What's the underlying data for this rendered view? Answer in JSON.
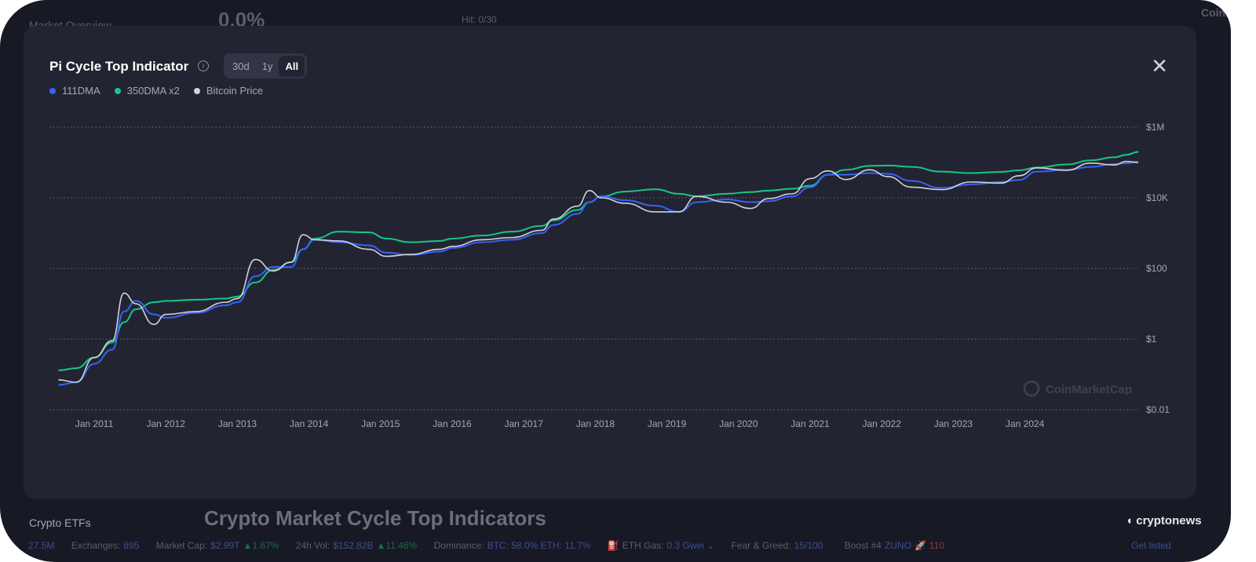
{
  "background": {
    "sidebar_top": "Market Overview",
    "sidebar_bottom": "Crypto ETFs",
    "stat_value": "0.0%",
    "hit": "Hit: 0/30",
    "page_heading": "Crypto Market Cycle Top Indicators",
    "watermark": "CoinMarketCap",
    "cryptonews_logo": "cryptonews"
  },
  "ticker": {
    "partial": "27.5M",
    "exchanges_label": "Exchanges:",
    "exchanges": "895",
    "mcap_label": "Market Cap:",
    "mcap": "$2.99T",
    "mcap_change": "▲1.67%",
    "vol_label": "24h Vol:",
    "vol": "$152.82B",
    "vol_change": "▲11.46%",
    "dom_label": "Dominance:",
    "dom": "BTC: 58.0% ETH: 11.7%",
    "gas_label": "ETH Gas:",
    "gas": "0.3 Gwei ⌄",
    "fg_label": "Fear & Greed:",
    "fg": "15/100",
    "boost": "Boost #4",
    "boost_coin": "ZUNO",
    "boost_count": "110",
    "get_listed": "Get listed"
  },
  "modal": {
    "title": "Pi Cycle Top Indicator",
    "ranges": [
      "30d",
      "1y",
      "All"
    ],
    "active_range": "All",
    "watermark": "CoinMarketCap"
  },
  "chart_data": {
    "type": "line",
    "yscale": "log",
    "ylim": [
      0.01,
      1000000
    ],
    "grid": true,
    "legend_position": "top-left",
    "y_ticks": [
      "$1M",
      "$10K",
      "$100",
      "$1",
      "$0.01"
    ],
    "y_tick_values": [
      1000000,
      10000,
      100,
      1,
      0.01
    ],
    "x_ticks": [
      "Jan 2011",
      "Jan 2012",
      "Jan 2013",
      "Jan 2014",
      "Jan 2015",
      "Jan 2016",
      "Jan 2017",
      "Jan 2018",
      "Jan 2019",
      "Jan 2020",
      "Jan 2021",
      "Jan 2022",
      "Jan 2023",
      "Jan 2024"
    ],
    "x": [
      "2010-07",
      "2010-10",
      "2011-01",
      "2011-04",
      "2011-06",
      "2011-08",
      "2011-11",
      "2012-01",
      "2012-06",
      "2012-11",
      "2013-01",
      "2013-04",
      "2013-07",
      "2013-10",
      "2013-12",
      "2014-02",
      "2014-06",
      "2014-11",
      "2015-02",
      "2015-06",
      "2015-11",
      "2016-01",
      "2016-06",
      "2016-11",
      "2017-04",
      "2017-06",
      "2017-10",
      "2017-12",
      "2018-02",
      "2018-06",
      "2018-11",
      "2019-03",
      "2019-06",
      "2019-11",
      "2020-03",
      "2020-06",
      "2020-10",
      "2021-01",
      "2021-04",
      "2021-07",
      "2021-11",
      "2022-02",
      "2022-06",
      "2022-11",
      "2023-04",
      "2023-09",
      "2023-12",
      "2024-03",
      "2024-08",
      "2024-12",
      "2025-04",
      "2025-06",
      "2025-08"
    ],
    "series": [
      {
        "name": "111DMA",
        "color": "#3861fb",
        "values": [
          0.05,
          0.06,
          0.2,
          0.5,
          6,
          12,
          5,
          4,
          5.5,
          9,
          11,
          60,
          110,
          110,
          350,
          650,
          550,
          450,
          280,
          240,
          300,
          380,
          550,
          650,
          1000,
          1700,
          3500,
          7500,
          11000,
          8500,
          6000,
          4000,
          7500,
          9000,
          7500,
          8000,
          11000,
          20000,
          45000,
          45000,
          50000,
          48000,
          30000,
          19000,
          24000,
          28000,
          32000,
          55000,
          62000,
          75000,
          90000,
          95000,
          105000
        ]
      },
      {
        "name": "350DMA x2",
        "color": "#16c784",
        "values": [
          0.13,
          0.15,
          0.3,
          0.8,
          3,
          7,
          11,
          12,
          13,
          14,
          16,
          40,
          90,
          150,
          350,
          700,
          1100,
          1050,
          700,
          550,
          600,
          700,
          850,
          1100,
          1600,
          2300,
          4500,
          7500,
          11000,
          15000,
          17500,
          13000,
          11000,
          13000,
          14500,
          16000,
          18000,
          22000,
          45000,
          62000,
          80000,
          82000,
          75000,
          55000,
          50000,
          54000,
          60000,
          72000,
          88000,
          115000,
          140000,
          165000,
          200000
        ]
      },
      {
        "name": "Bitcoin Price",
        "color": "#cfd2d9",
        "values": [
          0.07,
          0.06,
          0.3,
          0.9,
          20,
          10,
          2.6,
          5,
          6,
          11,
          14,
          180,
          85,
          150,
          900,
          650,
          600,
          350,
          220,
          250,
          350,
          420,
          650,
          750,
          1200,
          2500,
          5800,
          16000,
          10000,
          7000,
          4000,
          4000,
          11000,
          7500,
          5000,
          9500,
          13000,
          35000,
          58000,
          33000,
          62000,
          40000,
          20000,
          17000,
          28000,
          26000,
          42000,
          70000,
          60000,
          96000,
          85000,
          107000,
          100000
        ]
      }
    ]
  }
}
